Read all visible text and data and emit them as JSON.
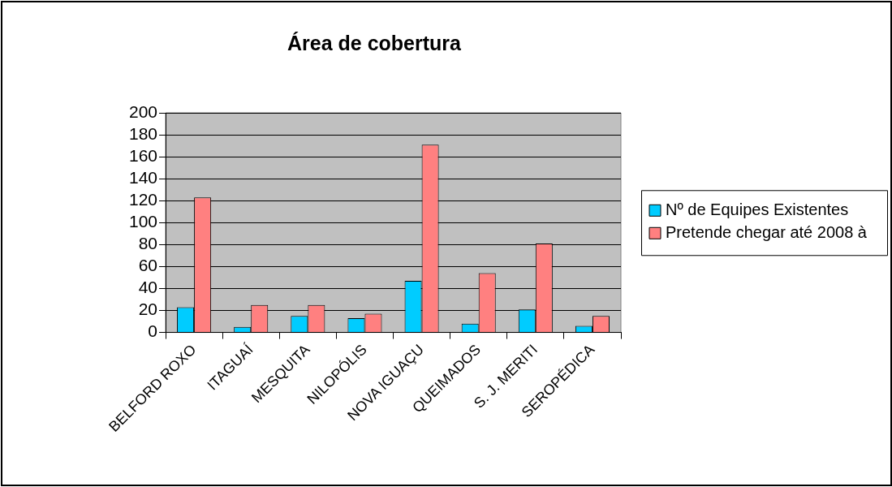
{
  "chart_data": {
    "type": "bar",
    "title": "Área de cobertura",
    "categories": [
      "BELFORD ROXO",
      "ITAGUAÍ",
      "MESQUITA",
      "NILOPÓLIS",
      "NOVA IGUAÇU",
      "QUEIMADOS",
      "S. J. MERITI",
      "SEROPÉDICA"
    ],
    "series": [
      {
        "name": "Nº de Equipes Existentes",
        "color": "#00ccff",
        "values": [
          23,
          5,
          15,
          13,
          47,
          8,
          21,
          6
        ]
      },
      {
        "name": "Pretende chegar até 2008 à",
        "color": "#ff8080",
        "values": [
          123,
          25,
          25,
          17,
          171,
          54,
          81,
          15
        ]
      }
    ],
    "ylim": [
      0,
      200
    ],
    "yticks": [
      0,
      20,
      40,
      60,
      80,
      100,
      120,
      140,
      160,
      180,
      200
    ],
    "grid": "y",
    "legend": "right"
  }
}
